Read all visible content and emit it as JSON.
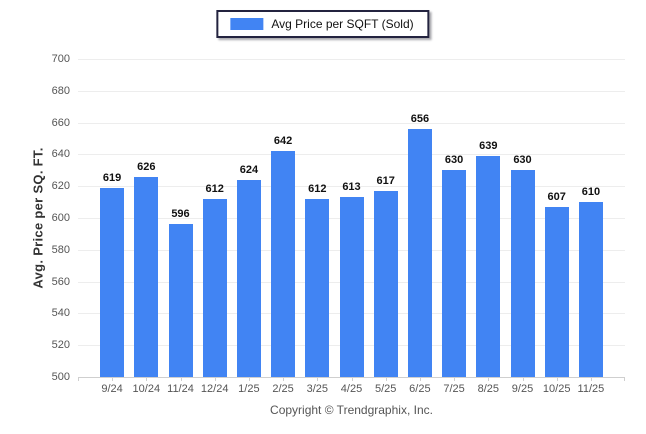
{
  "chart_data": {
    "type": "bar",
    "legend": "Avg Price per SQFT (Sold)",
    "ylabel": "Avg. Price per SQ. FT.",
    "xlabel": "",
    "categories": [
      "9/24",
      "10/24",
      "11/24",
      "12/24",
      "1/25",
      "2/25",
      "3/25",
      "4/25",
      "5/25",
      "6/25",
      "7/25",
      "8/25",
      "9/25",
      "10/25",
      "11/25"
    ],
    "values": [
      619,
      626,
      596,
      612,
      624,
      642,
      612,
      613,
      617,
      656,
      630,
      639,
      630,
      607,
      610
    ],
    "ylim": [
      500,
      700
    ],
    "y_ticks": [
      700,
      680,
      660,
      640,
      620,
      600,
      580,
      560,
      540,
      520,
      500
    ],
    "grid": "horizontal",
    "legend_position": "top-center",
    "bar_color": "#4184f3"
  },
  "footer": {
    "text": "Copyright © Trendgraphix, Inc."
  },
  "colors": {
    "bar": "#4184f3",
    "axis_text": "#555555",
    "value_label": "#111111",
    "gridline": "#ededed",
    "baseline": "#cfcfcf",
    "legend_border": "#23233f"
  }
}
